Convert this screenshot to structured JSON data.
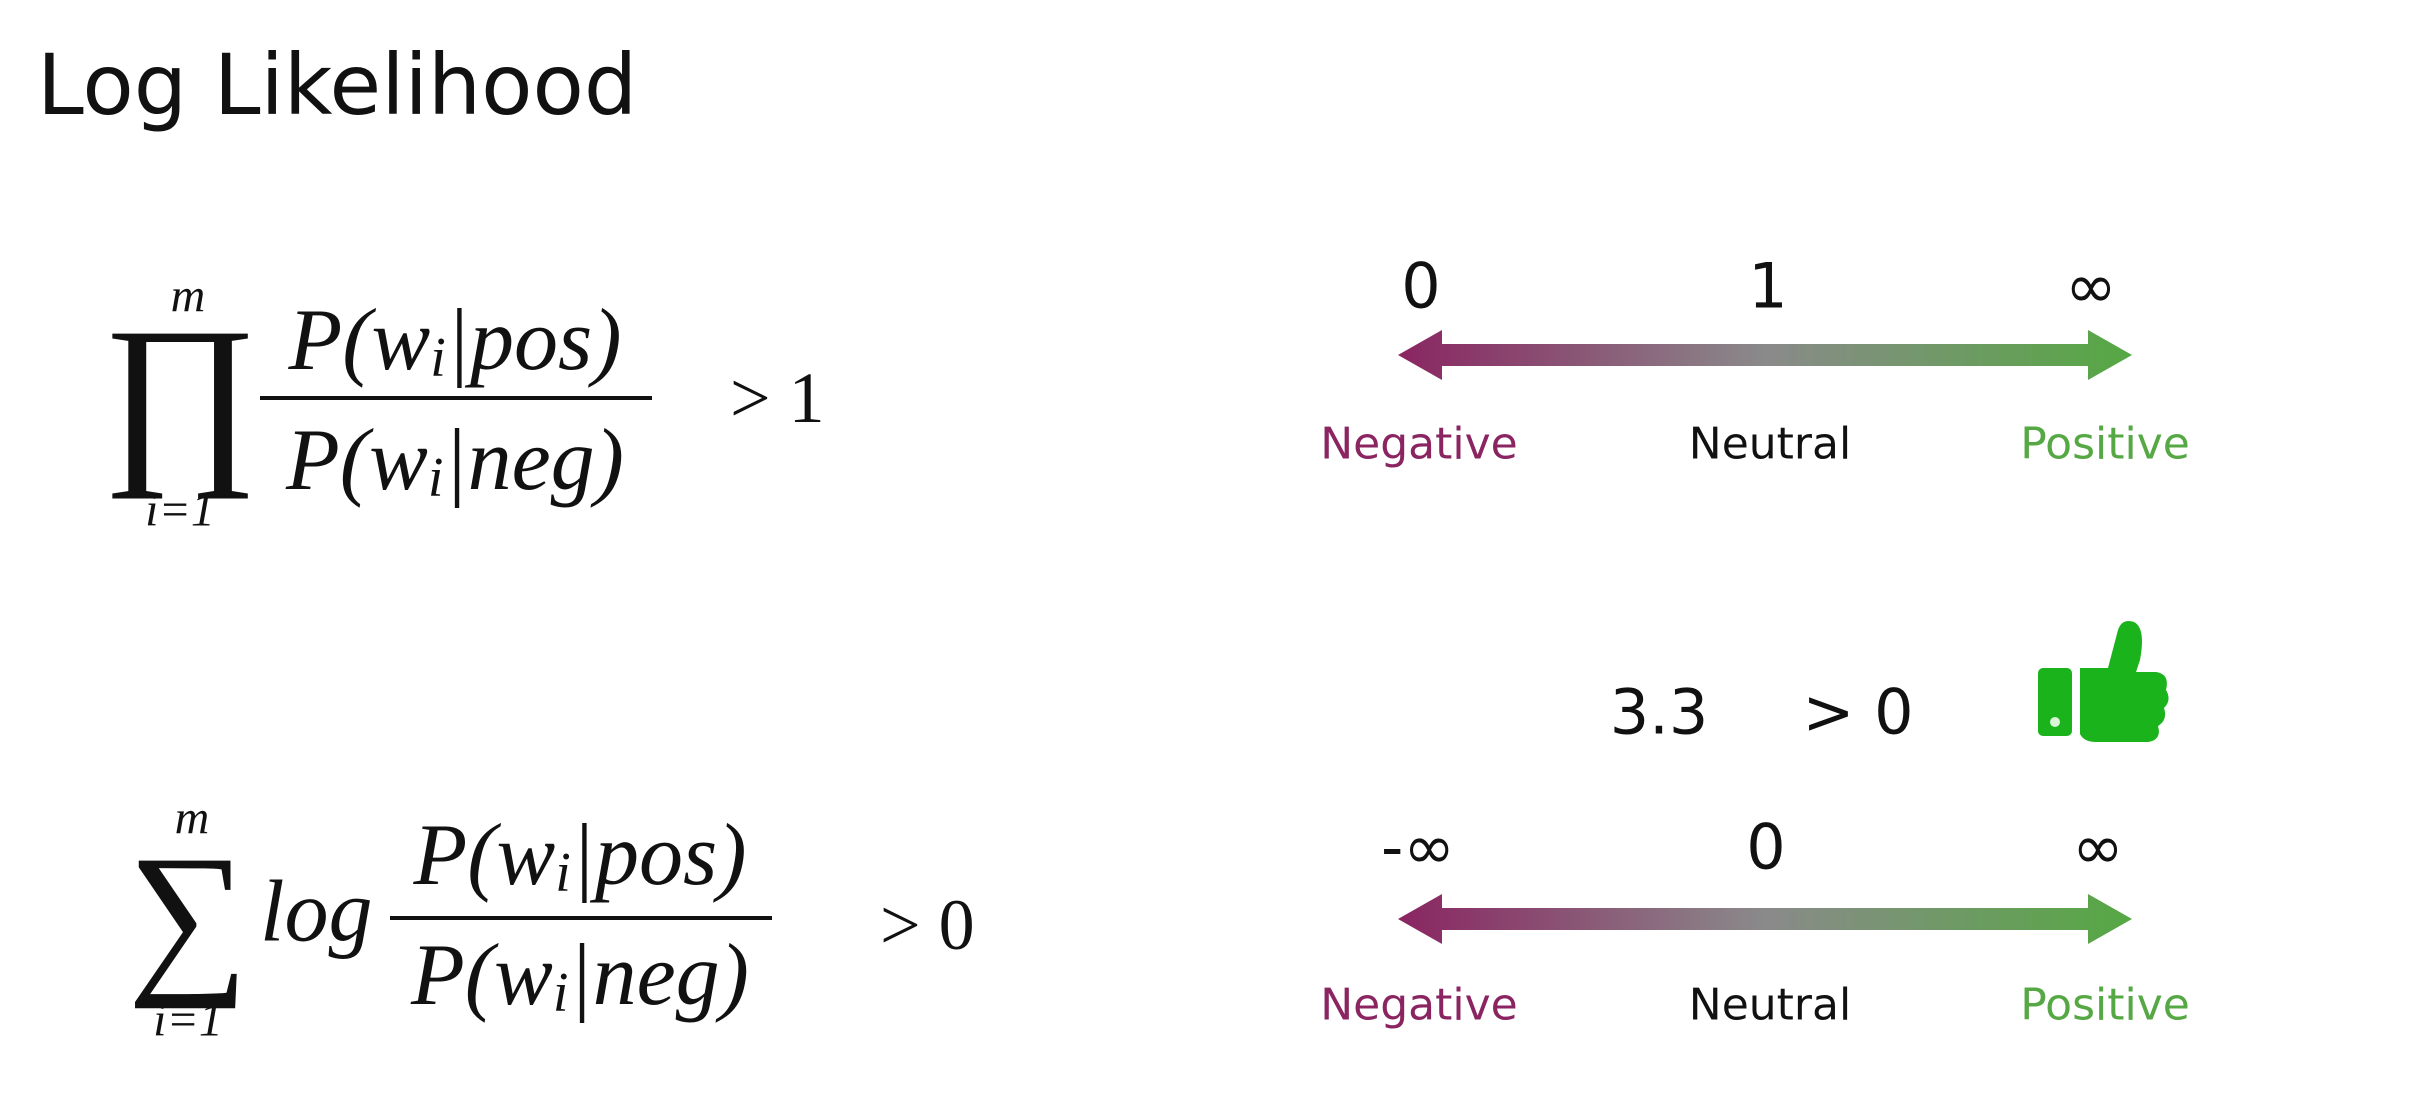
{
  "title": "Log Likelihood",
  "formulas": [
    {
      "operator": "∏",
      "upper": "m",
      "lower": "i=1",
      "numerator": [
        "P(w",
        "i",
        "|pos)"
      ],
      "denominator": [
        "P(w",
        "i",
        "|neg)"
      ],
      "comparison": "> 1"
    },
    {
      "operator": "∑",
      "upper": "m",
      "lower": "i=1",
      "prefix": "log",
      "numerator": [
        "P(w",
        "i",
        "|pos)"
      ],
      "denominator": [
        "P(w",
        "i",
        "|neg)"
      ],
      "comparison": "> 0"
    }
  ],
  "scales": [
    {
      "ticks": [
        "0",
        "1",
        "∞"
      ],
      "labels": [
        "Negative",
        "Neutral",
        "Positive"
      ]
    },
    {
      "ticks": [
        "-∞",
        "0",
        "∞"
      ],
      "labels": [
        "Negative",
        "Neutral",
        "Positive"
      ]
    }
  ],
  "result": {
    "score": "3.3",
    "comparison": "> 0"
  }
}
